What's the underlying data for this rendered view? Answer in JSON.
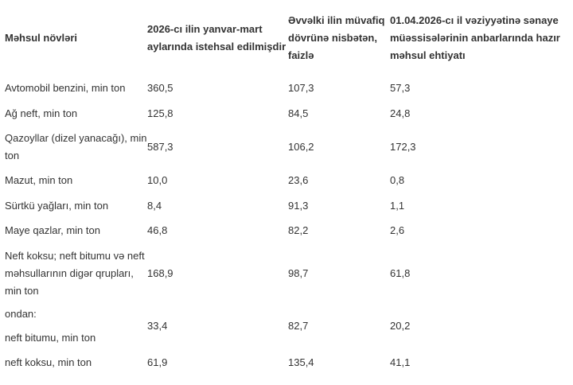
{
  "table": {
    "header": [
      "Məhsul növləri",
      "2026-cı ilin yanvar-mart aylarında istehsal edilmişdir",
      "Əvvəlki ilin müvafiq dövrünə nisbətən, faizlə",
      "01.04.2026-cı il vəziyyətinə sənaye müəssisələrinin anbarlarında hazır məhsul ehtiyatı"
    ],
    "rows": [
      [
        "Avtomobil benzini, min ton",
        "360,5",
        "107,3",
        "57,3"
      ],
      [
        "Ağ neft, min ton",
        "125,8",
        "84,5",
        "24,8"
      ],
      [
        "Qazoyllar (dizel yanacağı), min ton",
        "587,3",
        "106,2",
        "172,3"
      ],
      [
        "Mazut, min ton",
        "10,0",
        "23,6",
        "0,8"
      ],
      [
        "Sürtkü yağları, min ton",
        "8,4",
        "91,3",
        "1,1"
      ],
      [
        "Maye qazlar, min ton",
        "46,8",
        "82,2",
        "2,6"
      ],
      [
        "Neft koksu; neft bitumu və neft məhsullarının digər qrupları, min ton",
        "168,9",
        "98,7",
        "61,8"
      ],
      [
        [
          "ondan:",
          "neft bitumu, min ton"
        ],
        "33,4",
        "82,7",
        "20,2"
      ],
      [
        "neft koksu, min ton",
        "61,9",
        "135,4",
        "41,1"
      ]
    ]
  }
}
